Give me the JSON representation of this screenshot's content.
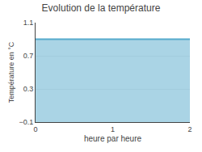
{
  "chart_data": {
    "type": "area",
    "title": "Evolution de la température",
    "xlabel": "heure par heure",
    "ylabel": "Température en °C",
    "x": [
      0,
      2
    ],
    "values": [
      0.9,
      0.9
    ],
    "color": "#55aacc",
    "xlim": [
      0,
      2
    ],
    "ylim": [
      -0.1,
      1.1
    ],
    "xticks": [
      0,
      1,
      2
    ],
    "yticks": [
      -0.1,
      0.3,
      0.7,
      1.1
    ],
    "grid": true
  }
}
